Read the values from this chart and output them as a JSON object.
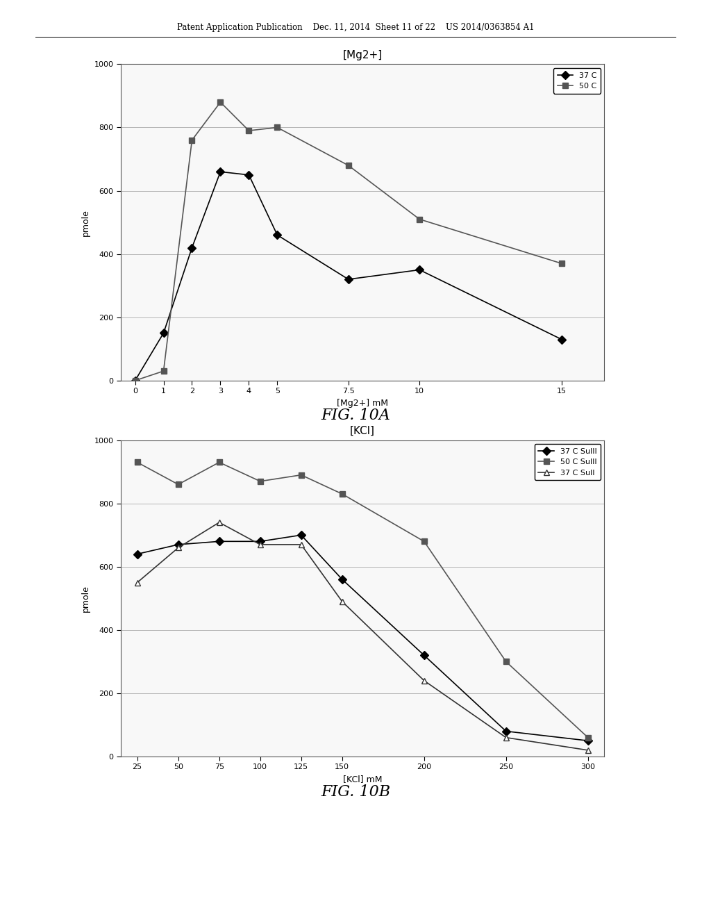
{
  "fig10a": {
    "title": "[Mg2+]",
    "xlabel": "[Mg2+] mM",
    "ylabel": "pmole",
    "ylim": [
      0,
      1000
    ],
    "yticks": [
      0,
      200,
      400,
      600,
      800,
      1000
    ],
    "xticks": [
      0,
      1,
      2,
      3,
      4,
      5,
      7.5,
      10,
      15
    ],
    "xticklabels": [
      "0",
      "1",
      "2",
      "3",
      "4",
      "5",
      "7.5",
      "10",
      "15"
    ],
    "series": [
      {
        "label": "37 C",
        "x": [
          0,
          1,
          2,
          3,
          4,
          5,
          7.5,
          10,
          15
        ],
        "y": [
          0,
          150,
          420,
          660,
          650,
          460,
          320,
          350,
          130
        ],
        "color": "#000000",
        "marker": "D",
        "linestyle": "-"
      },
      {
        "label": "50 C",
        "x": [
          0,
          1,
          2,
          3,
          4,
          5,
          7.5,
          10,
          15
        ],
        "y": [
          0,
          30,
          760,
          880,
          790,
          800,
          680,
          510,
          370
        ],
        "color": "#555555",
        "marker": "s",
        "linestyle": "-"
      }
    ]
  },
  "fig10b": {
    "title": "[KCl]",
    "xlabel": "[KCl] mM",
    "ylabel": "pmole",
    "ylim": [
      0,
      1000
    ],
    "yticks": [
      0,
      200,
      400,
      600,
      800,
      1000
    ],
    "xticks": [
      25,
      50,
      75,
      100,
      125,
      150,
      200,
      250,
      300
    ],
    "xticklabels": [
      "25",
      "50",
      "75",
      "100",
      "125",
      "150",
      "200",
      "250",
      "300"
    ],
    "series": [
      {
        "label": "37 C SulII",
        "x": [
          25,
          50,
          75,
          100,
          125,
          150,
          200,
          250,
          300
        ],
        "y": [
          640,
          670,
          680,
          680,
          700,
          560,
          320,
          80,
          50
        ],
        "color": "#000000",
        "marker": "D",
        "linestyle": "-"
      },
      {
        "label": "50 C SulII",
        "x": [
          25,
          50,
          75,
          100,
          125,
          150,
          200,
          250,
          300
        ],
        "y": [
          930,
          860,
          930,
          870,
          890,
          830,
          680,
          300,
          60
        ],
        "color": "#555555",
        "marker": "s",
        "linestyle": "-"
      },
      {
        "label": "37 C SulI",
        "x": [
          25,
          50,
          75,
          100,
          125,
          150,
          200,
          250,
          300
        ],
        "y": [
          550,
          660,
          740,
          670,
          670,
          490,
          240,
          60,
          20
        ],
        "color": "#333333",
        "marker": "^",
        "linestyle": "-"
      }
    ]
  },
  "header_text": "Patent Application Publication    Dec. 11, 2014  Sheet 11 of 22    US 2014/0363854 A1",
  "fig_label_a": "FIG. 10A",
  "fig_label_b": "FIG. 10B",
  "background_color": "#ffffff",
  "chart_bg": "#f0f0f0"
}
